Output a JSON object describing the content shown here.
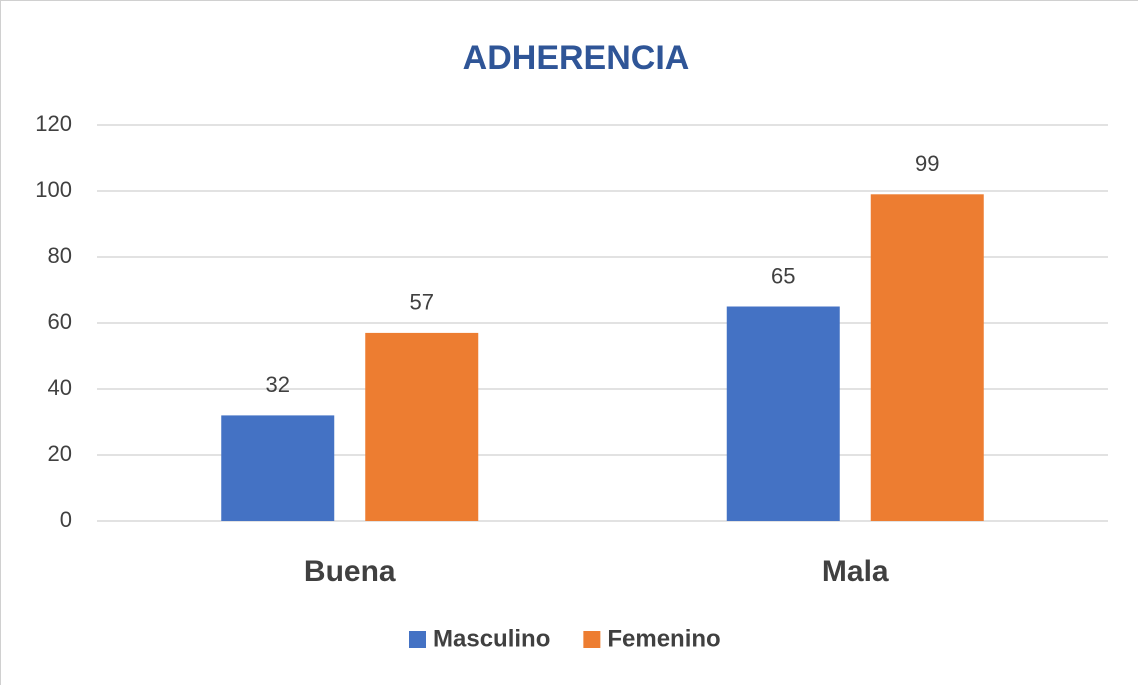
{
  "chart_data": {
    "type": "bar",
    "title": "ADHERENCIA",
    "categories": [
      "Buena",
      "Mala"
    ],
    "series": [
      {
        "name": "Masculino",
        "color": "#4472c4",
        "values": [
          32,
          65
        ]
      },
      {
        "name": "Femenino",
        "color": "#ed7d31",
        "values": [
          57,
          99
        ]
      }
    ],
    "ylim": [
      0,
      120
    ],
    "yticks": [
      0,
      20,
      40,
      60,
      80,
      100,
      120
    ],
    "grid": true,
    "legend": "bottom",
    "data_labels": true
  }
}
